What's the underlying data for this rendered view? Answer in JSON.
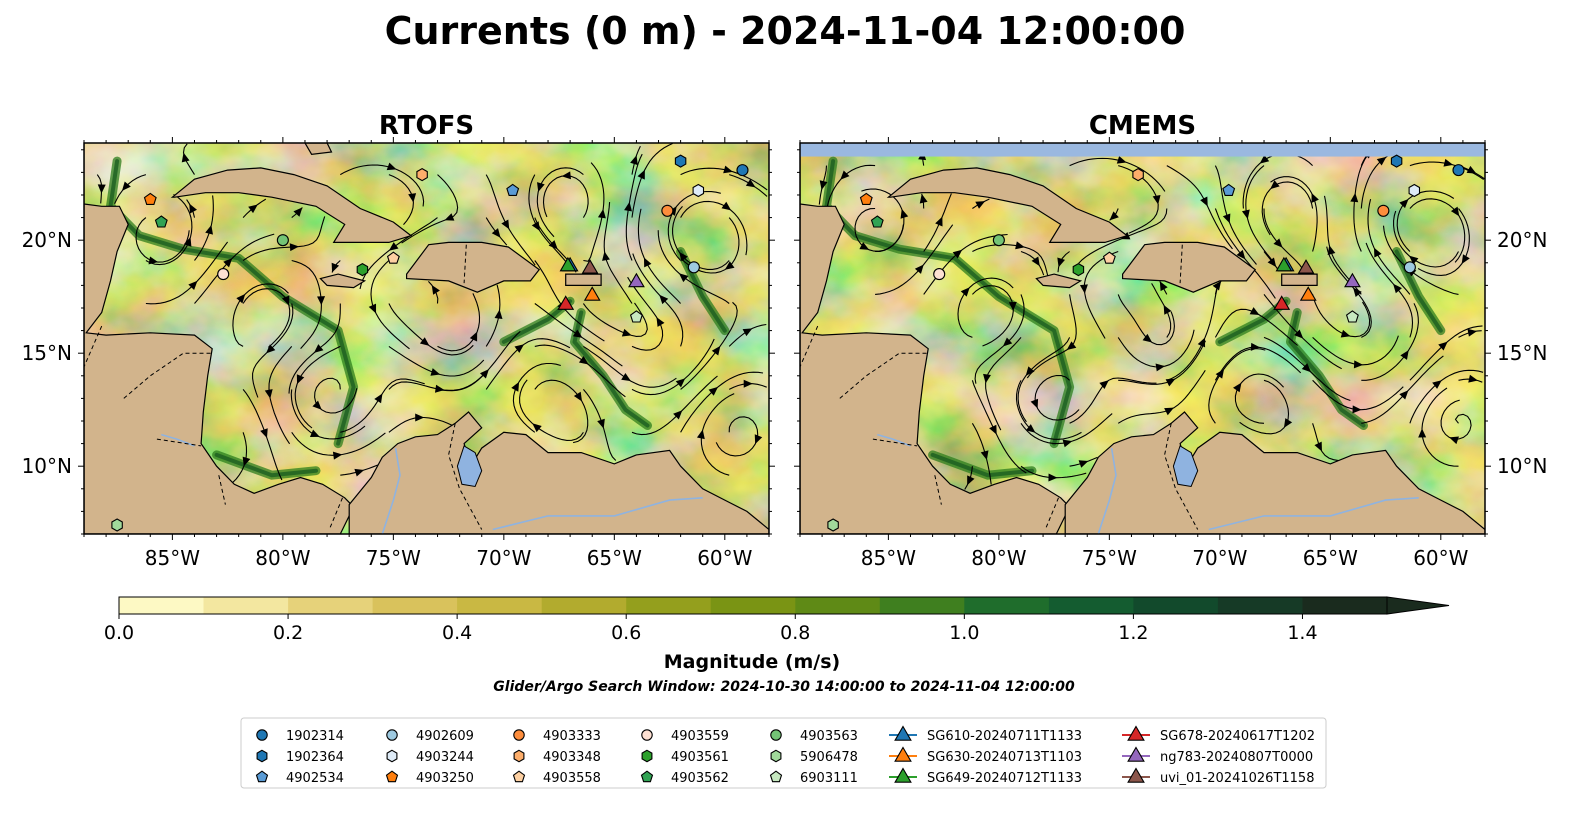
{
  "title": "Currents (0 m) - 2024-11-04 12:00:00",
  "panels": [
    {
      "id": "rtofs",
      "title": "RTOFS",
      "show_y_left": true,
      "show_y_right": false,
      "missing_band": false
    },
    {
      "id": "cmems",
      "title": "CMEMS",
      "show_y_left": false,
      "show_y_right": true,
      "missing_band": true
    }
  ],
  "colors": {
    "land": "#d2b48c",
    "water_features": "#8fb3e0",
    "missing": "#9ab8e0",
    "speed_ramp": [
      "#fdf9c4",
      "#f3e7a0",
      "#e6d27a",
      "#d9c25c",
      "#c9b843",
      "#b2ab2e",
      "#949f1d",
      "#7a9414",
      "#5f8a16",
      "#3f7f1f",
      "#1f6d2c",
      "#145c30",
      "#124a2c",
      "#163a26",
      "#1a2b1e"
    ]
  },
  "floats": [
    {
      "id": "1902314",
      "marker": "circle",
      "color": "#1f77b4",
      "lon": -59.2,
      "lat": 23.1
    },
    {
      "id": "1902364",
      "marker": "hexagon",
      "color": "#1f77b4",
      "lon": -62.0,
      "lat": 23.5
    },
    {
      "id": "4902534",
      "marker": "pentagon",
      "color": "#5a9bd5",
      "lon": -69.6,
      "lat": 22.2
    },
    {
      "id": "4902609",
      "marker": "circle",
      "color": "#9ecae1",
      "lon": -61.4,
      "lat": 18.8
    },
    {
      "id": "4903244",
      "marker": "hexagon",
      "color": "#deebf7",
      "lon": -61.2,
      "lat": 22.2
    },
    {
      "id": "4903250",
      "marker": "pentagon",
      "color": "#ff7f0e",
      "lon": -86.0,
      "lat": 21.8
    },
    {
      "id": "4903333",
      "marker": "circle",
      "color": "#fd8d3c",
      "lon": -62.6,
      "lat": 21.3
    },
    {
      "id": "4903348",
      "marker": "hexagon",
      "color": "#fdae6b",
      "lon": -73.7,
      "lat": 22.9
    },
    {
      "id": "4903558",
      "marker": "pentagon",
      "color": "#fdd0a2",
      "lon": -75.0,
      "lat": 19.2
    },
    {
      "id": "4903559",
      "marker": "circle",
      "color": "#fde0d2",
      "lon": -82.7,
      "lat": 18.5
    },
    {
      "id": "4903561",
      "marker": "hexagon",
      "color": "#2ca02c",
      "lon": -76.4,
      "lat": 18.7
    },
    {
      "id": "4903562",
      "marker": "pentagon",
      "color": "#31a354",
      "lon": -85.5,
      "lat": 20.8
    },
    {
      "id": "4903563",
      "marker": "circle",
      "color": "#74c476",
      "lon": -80.0,
      "lat": 20.0
    },
    {
      "id": "5906478",
      "marker": "hexagon",
      "color": "#a1d99b",
      "lon": -87.5,
      "lat": 7.4
    },
    {
      "id": "6903111",
      "marker": "pentagon",
      "color": "#c7e9c0",
      "lon": -64.0,
      "lat": 16.6
    }
  ],
  "gliders": [
    {
      "id": "SG610-20240711T1133",
      "color": "#1f77b4",
      "lon": -67.0,
      "lat": 18.9
    },
    {
      "id": "SG630-20240713T1103",
      "color": "#ff7f0e",
      "lon": -66.0,
      "lat": 17.6
    },
    {
      "id": "SG649-20240712T1133",
      "color": "#2ca02c",
      "lon": -67.1,
      "lat": 18.9
    },
    {
      "id": "SG678-20240617T1202",
      "color": "#d62728",
      "lon": -67.2,
      "lat": 17.2
    },
    {
      "id": "ng783-20240807T0000",
      "color": "#9467bd",
      "lon": -64.0,
      "lat": 18.2
    },
    {
      "id": "uvi_01-20241026T1158",
      "color": "#8c564b",
      "lon": -66.1,
      "lat": 18.8
    }
  ],
  "axis": {
    "x_ticks": [
      -85,
      -80,
      -75,
      -70,
      -65,
      -60
    ],
    "x_tick_labels": [
      "85°W",
      "80°W",
      "75°W",
      "70°W",
      "65°W",
      "60°W"
    ],
    "y_ticks": [
      10,
      15,
      20
    ],
    "y_tick_labels": [
      "10°N",
      "15°N",
      "20°N"
    ],
    "lon_range": [
      -89,
      -58
    ],
    "lat_range": [
      7,
      24.3
    ]
  },
  "colorbar": {
    "label": "Magnitude (m/s)",
    "ticks": [
      0.0,
      0.2,
      0.4,
      0.6,
      0.8,
      1.0,
      1.2,
      1.4
    ],
    "tick_labels": [
      "0.0",
      "0.2",
      "0.4",
      "0.6",
      "0.8",
      "1.0",
      "1.2",
      "1.4"
    ],
    "range": [
      0,
      1.5
    ],
    "extend": "max"
  },
  "subtitle": "Glider/Argo Search Window: 2024-10-30 14:00:00 to 2024-11-04 12:00:00",
  "chart_data": {
    "type": "heatmap",
    "title": "Currents (0 m) - 2024-11-04 12:00:00",
    "panels": [
      "RTOFS",
      "CMEMS"
    ],
    "variable": "surface current magnitude with streamlines",
    "colorbar_label": "Magnitude (m/s)",
    "colorbar_range": [
      0,
      1.5
    ],
    "xlim": [
      -89,
      -58
    ],
    "ylim": [
      7,
      24.3
    ],
    "x_tick_labels": [
      "85°W",
      "80°W",
      "75°W",
      "70°W",
      "65°W",
      "60°W"
    ],
    "y_tick_labels": [
      "10°N",
      "15°N",
      "20°N"
    ],
    "legend_position": "bottom-center",
    "legend_columns": 7
  }
}
